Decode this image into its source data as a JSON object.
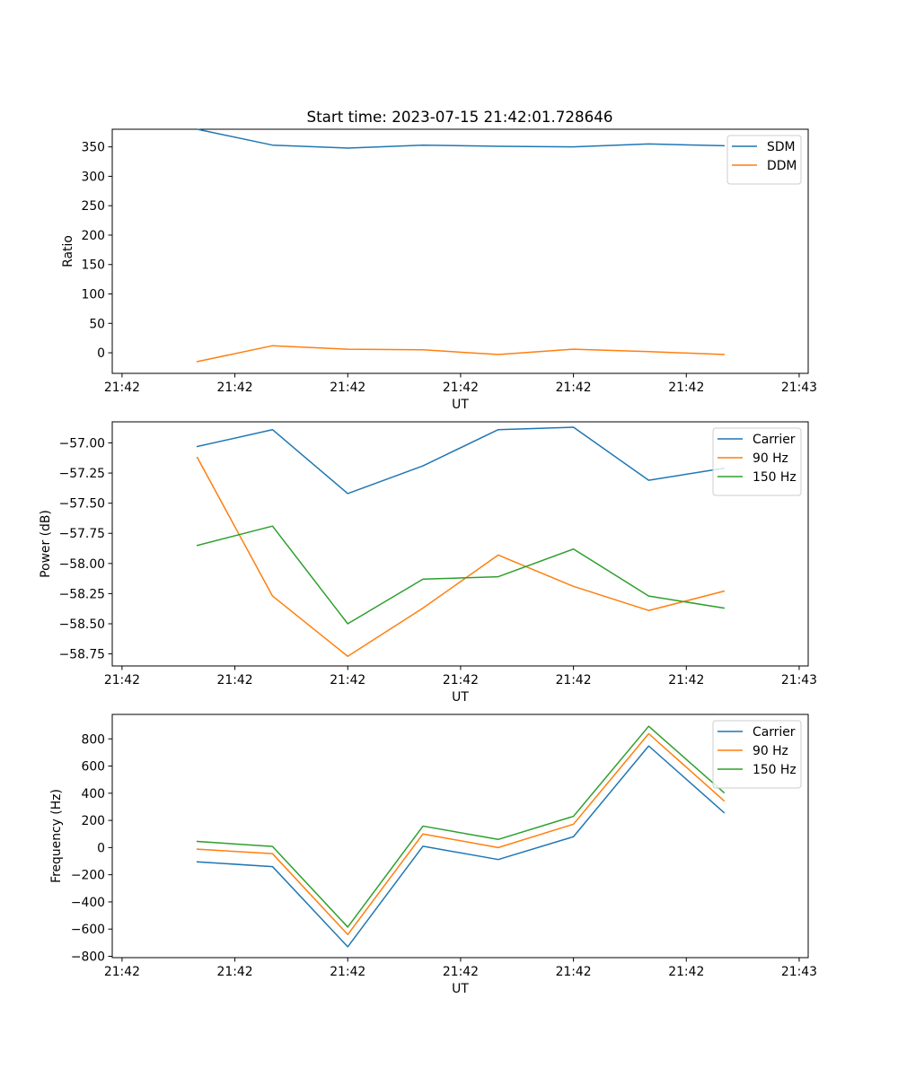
{
  "chart_data": [
    {
      "type": "line",
      "title": "Start time: 2023-07-15 21:42:01.728646",
      "xlabel": "UT",
      "ylabel": "Ratio",
      "x_tick_labels": [
        "21:42",
        "21:42",
        "21:42",
        "21:42",
        "21:42",
        "21:42",
        "21:43"
      ],
      "x_points": [
        1,
        2,
        3,
        4,
        5,
        6,
        7,
        8
      ],
      "xlim": [
        -0.13,
        9.12
      ],
      "ylim": [
        -35,
        380
      ],
      "yticks": [
        0,
        50,
        100,
        150,
        200,
        250,
        300,
        350
      ],
      "legend_position": "upper right",
      "grid": false,
      "series": [
        {
          "name": "SDM",
          "color": "#1f77b4",
          "values": [
            380,
            353,
            348,
            353,
            351,
            350,
            355,
            352
          ]
        },
        {
          "name": "DDM",
          "color": "#ff7f0e",
          "values": [
            -15,
            12,
            6,
            5,
            -3,
            6,
            2,
            -3
          ]
        }
      ]
    },
    {
      "type": "line",
      "title": "",
      "xlabel": "UT",
      "ylabel": "Power (dB)",
      "x_tick_labels": [
        "21:42",
        "21:42",
        "21:42",
        "21:42",
        "21:42",
        "21:42",
        "21:43"
      ],
      "x_points": [
        1,
        2,
        3,
        4,
        5,
        6,
        7,
        8
      ],
      "xlim": [
        -0.13,
        9.12
      ],
      "ylim": [
        -58.85,
        -56.825
      ],
      "yticks": [
        -57.0,
        -57.25,
        -57.5,
        -57.75,
        -58.0,
        -58.25,
        -58.5,
        -58.75
      ],
      "legend_position": "upper right",
      "grid": false,
      "series": [
        {
          "name": "Carrier",
          "color": "#1f77b4",
          "values": [
            -57.03,
            -56.89,
            -57.42,
            -57.19,
            -56.89,
            -56.87,
            -57.31,
            -57.21
          ]
        },
        {
          "name": "90 Hz",
          "color": "#ff7f0e",
          "values": [
            -57.12,
            -58.27,
            -58.77,
            -58.37,
            -57.93,
            -58.19,
            -58.39,
            -58.23
          ]
        },
        {
          "name": "150 Hz",
          "color": "#2ca02c",
          "values": [
            -57.85,
            -57.69,
            -58.5,
            -58.13,
            -58.11,
            -57.88,
            -58.27,
            -58.37
          ]
        }
      ]
    },
    {
      "type": "line",
      "title": "",
      "xlabel": "UT",
      "ylabel": "Frequency (Hz)",
      "x_tick_labels": [
        "21:42",
        "21:42",
        "21:42",
        "21:42",
        "21:42",
        "21:42",
        "21:43"
      ],
      "x_points": [
        1,
        2,
        3,
        4,
        5,
        6,
        7,
        8
      ],
      "xlim": [
        -0.13,
        9.12
      ],
      "ylim": [
        -810,
        980
      ],
      "yticks": [
        -800,
        -600,
        -400,
        -200,
        0,
        200,
        400,
        600,
        800
      ],
      "legend_position": "upper right",
      "grid": false,
      "series": [
        {
          "name": "Carrier",
          "color": "#1f77b4",
          "values": [
            -105,
            -140,
            -730,
            10,
            -88,
            80,
            748,
            258
          ]
        },
        {
          "name": "90 Hz",
          "color": "#ff7f0e",
          "values": [
            -12,
            -45,
            -640,
            100,
            0,
            172,
            838,
            345
          ]
        },
        {
          "name": "150 Hz",
          "color": "#2ca02c",
          "values": [
            45,
            8,
            -585,
            158,
            60,
            230,
            893,
            405
          ]
        }
      ]
    }
  ]
}
